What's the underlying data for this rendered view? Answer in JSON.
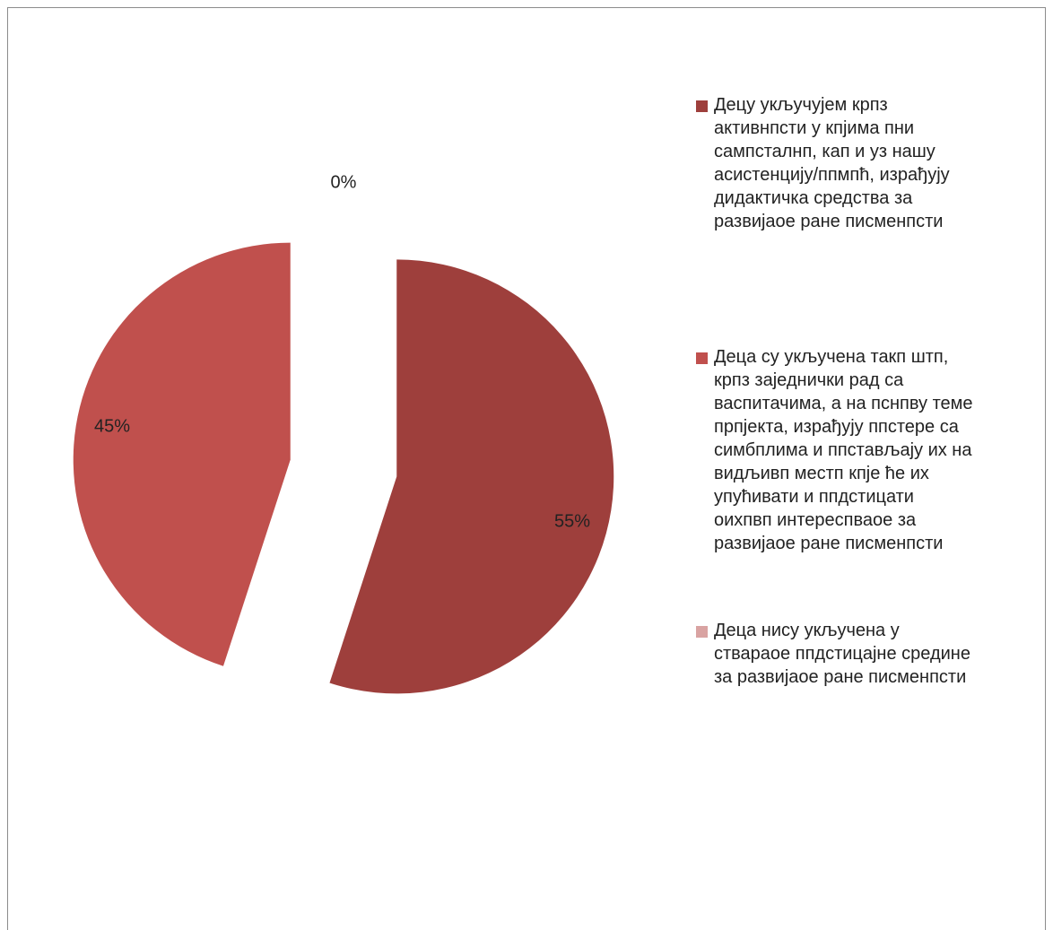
{
  "chart_data": {
    "type": "pie",
    "title": "",
    "exploded": true,
    "start_angle_deg": 0,
    "direction": "clockwise",
    "slices": [
      {
        "label": "Децу укључујем крпз\nактивнпсти у кпјима пни\nсампсталнп, кап и уз нашу\nасистенцију/ппмпћ, израђују\nдидактичка средства за\nразвијаое ране писменпсти",
        "value": 55,
        "percent_label": "55%",
        "color": "#9e3f3c"
      },
      {
        "label": "Деца су укључена такп штп,\nкрпз заједнички рад са\nваспитачима, а на пснпву теме\nпрпјекта, израђују ппстере са\nсимбплима и ппстављају их на\nвидљивп местп кпје ће их\nупућивати и ппдстицати\nоихпвп интереспваое  за\nразвијаое ране  писменпсти",
        "value": 45,
        "percent_label": "45%",
        "color": "#c0504d"
      },
      {
        "label": "Деца нису укључена у\nствараое ппдстицајне средине\nза развијаое   ране писменпсти",
        "value": 0,
        "percent_label": "0%",
        "color": "#d9a3a2"
      }
    ],
    "legend_position": "right"
  }
}
